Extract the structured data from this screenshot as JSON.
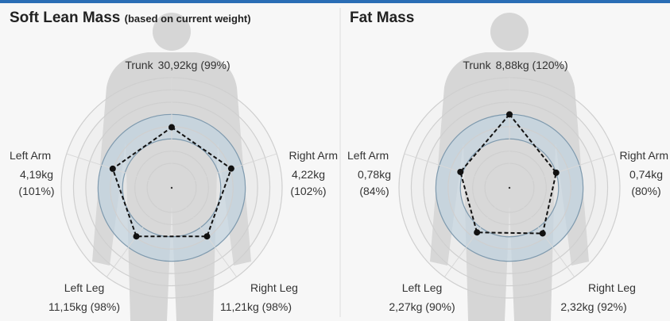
{
  "chart_data": [
    {
      "type": "radar",
      "title": "Soft Lean Mass",
      "subtitle": "(based on current weight)",
      "categories": [
        "Trunk",
        "Right Arm",
        "Right Leg",
        "Left Leg",
        "Left Arm"
      ],
      "values": [
        99,
        102,
        98,
        98,
        101
      ],
      "value_labels": [
        "30,92kg (99%)",
        "4,22kg (102%)",
        "11,21kg (98%)",
        "11,15kg (98%)",
        "4,19kg (101%)"
      ],
      "rlim": [
        0,
        180
      ],
      "rticks": [
        40,
        60,
        80,
        100,
        120,
        140,
        160,
        180
      ],
      "normal_range": [
        80,
        120
      ],
      "color": "#111111"
    },
    {
      "type": "radar",
      "title": "Fat Mass",
      "categories": [
        "Trunk",
        "Right Arm",
        "Right Leg",
        "Left Leg",
        "Left Arm"
      ],
      "values": [
        120,
        80,
        92,
        90,
        84
      ],
      "value_labels": [
        "8,88kg (120%)",
        "0,74kg (80%)",
        "2,32kg (92%)",
        "2,27kg (90%)",
        "0,78kg (84%)"
      ],
      "rlim": [
        0,
        180
      ],
      "rticks": [
        40,
        60,
        80,
        100,
        120,
        140,
        160,
        180
      ],
      "normal_range": [
        80,
        120
      ],
      "color": "#111111"
    }
  ]
}
